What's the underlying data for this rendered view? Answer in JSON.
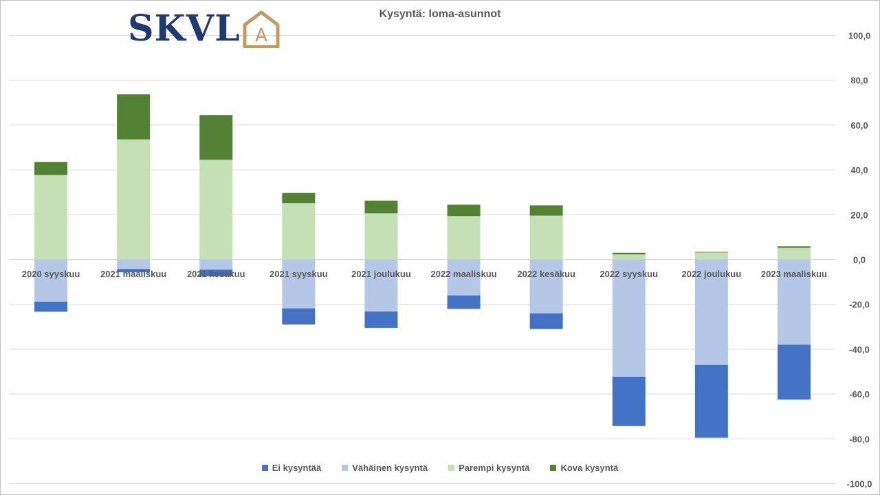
{
  "logo": {
    "text": "SKVL",
    "mark": "A"
  },
  "chart_data": {
    "type": "bar",
    "stacked": true,
    "title": "Kysyntä: loma-asunnot",
    "categories": [
      "2020 syyskuu",
      "2021 maaliskuu",
      "2021 kesäkuu",
      "2021 syyskuu",
      "2021 joulukuu",
      "2022 maaliskuu",
      "2022 kesäkuu",
      "2022 syyskuu",
      "2022 joulukuu",
      "2023 maaliskuu"
    ],
    "series": [
      {
        "name": "Ei kysyntää",
        "color": "#4472c4",
        "values": [
          -4.5,
          -1.5,
          -3,
          -7.2,
          -7.3,
          -6,
          -7,
          -22,
          -32.5,
          -24.5
        ]
      },
      {
        "name": "Vähäinen kysyntä",
        "color": "#b4c7e7",
        "values": [
          -18.8,
          -4.2,
          -4.5,
          -21.8,
          -23.2,
          -16,
          -24,
          -52.3,
          -47,
          -38
        ]
      },
      {
        "name": "Parempi kysyntä",
        "color": "#c5e0b4",
        "values": [
          37.7,
          53.6,
          44.5,
          25.2,
          20.6,
          19.4,
          19.6,
          2.3,
          3.1,
          5.2
        ]
      },
      {
        "name": "Kova kysyntä",
        "color": "#548235",
        "values": [
          5.8,
          20.1,
          20,
          4.5,
          5.7,
          5.1,
          4.6,
          0.7,
          0.3,
          0.7
        ]
      }
    ],
    "ylim": [
      -100,
      100
    ],
    "yticks": [
      "100,0",
      "80,0",
      "60,0",
      "40,0",
      "20,0",
      "0,0",
      "-20,0",
      "-40,0",
      "-60,0",
      "-80,0",
      "-100,0"
    ],
    "grid": true,
    "legend": "bottom",
    "y_axis_side": "right"
  }
}
